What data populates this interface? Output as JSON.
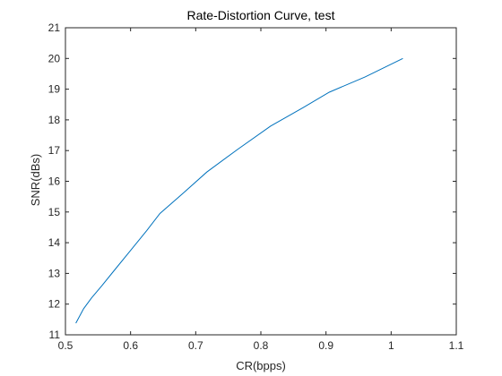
{
  "chart_data": {
    "type": "line",
    "title": "Rate-Distortion Curve, test",
    "xlabel": "CR(bpps)",
    "ylabel": "SNR(dBs)",
    "xlim": [
      0.5,
      1.1
    ],
    "ylim": [
      11,
      21
    ],
    "xticks": [
      "0.5",
      "0.6",
      "0.7",
      "0.8",
      "0.9",
      "1",
      "1.1"
    ],
    "yticks": [
      "11",
      "12",
      "13",
      "14",
      "15",
      "16",
      "17",
      "18",
      "19",
      "20",
      "21"
    ],
    "grid": false,
    "series": [
      {
        "color": "#0072BD",
        "x": [
          0.516,
          0.528,
          0.54,
          0.556,
          0.575,
          0.6,
          0.625,
          0.645,
          0.68,
          0.717,
          0.765,
          0.815,
          0.865,
          0.905,
          0.96,
          1.018
        ],
        "y": [
          11.38,
          11.85,
          12.2,
          12.6,
          13.1,
          13.75,
          14.4,
          14.95,
          15.6,
          16.3,
          17.05,
          17.8,
          18.4,
          18.9,
          19.4,
          20.0
        ]
      }
    ]
  }
}
